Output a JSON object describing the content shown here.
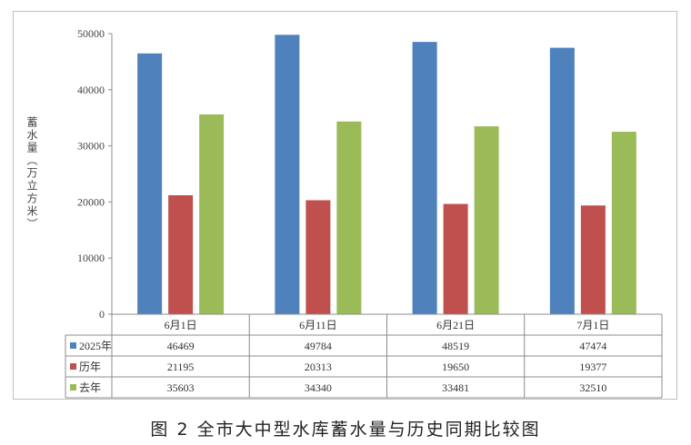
{
  "caption": "图 2   全市大中型水库蓄水量与历史同期比较图",
  "chart_data": {
    "type": "bar",
    "title": "",
    "ylabel": "蓄水量（万立方米）",
    "xlabel": "",
    "ylim": [
      0,
      50000
    ],
    "yticks": [
      0,
      10000,
      20000,
      30000,
      40000,
      50000
    ],
    "grid": false,
    "categories": [
      "6月1日",
      "6月11日",
      "6月21日",
      "7月1日"
    ],
    "series": [
      {
        "name": "2025年",
        "color": "#4f81bd",
        "values": [
          46469,
          49784,
          48519,
          47474
        ]
      },
      {
        "name": "历年",
        "color": "#c0504d",
        "values": [
          21195,
          20313,
          19650,
          19377
        ]
      },
      {
        "name": "去年",
        "color": "#9bbb59",
        "values": [
          35603,
          34340,
          33481,
          32510
        ]
      }
    ],
    "legend": "data-table"
  }
}
